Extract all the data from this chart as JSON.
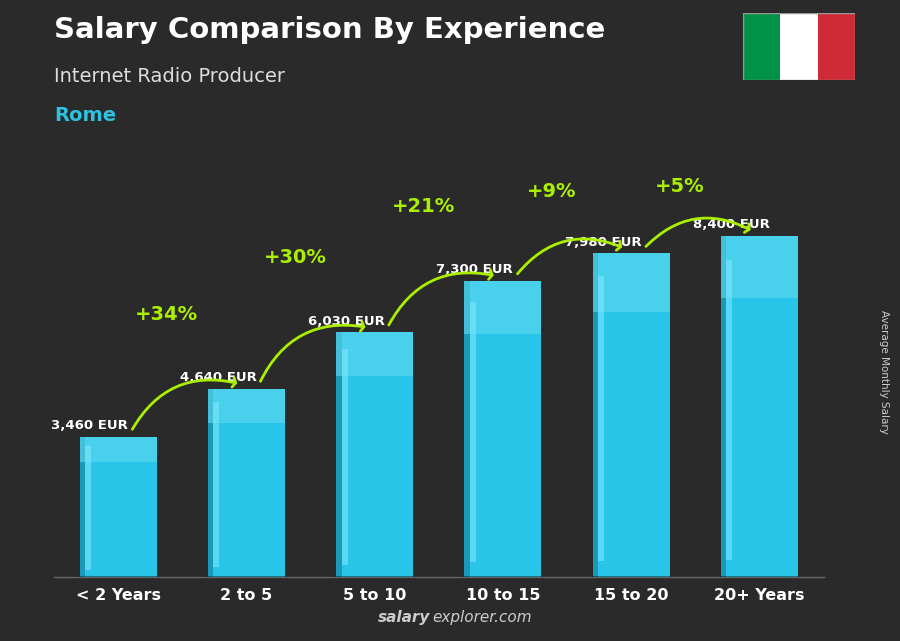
{
  "title": "Salary Comparison By Experience",
  "subtitle": "Internet Radio Producer",
  "city": "Rome",
  "watermark_bold": "salary",
  "watermark_normal": "explorer.com",
  "right_label": "Average Monthly Salary",
  "categories": [
    "< 2 Years",
    "2 to 5",
    "5 to 10",
    "10 to 15",
    "15 to 20",
    "20+ Years"
  ],
  "values": [
    3460,
    4640,
    6030,
    7300,
    7980,
    8400
  ],
  "labels": [
    "3,460 EUR",
    "4,640 EUR",
    "6,030 EUR",
    "7,300 EUR",
    "7,980 EUR",
    "8,400 EUR"
  ],
  "pct_labels": [
    "+34%",
    "+30%",
    "+21%",
    "+9%",
    "+5%"
  ],
  "bar_color_face": "#29c5e8",
  "bar_color_left": "#1a9ab8",
  "bar_color_top": "#60d8f0",
  "bar_highlight": "#80e8ff",
  "bg_color": "#2a2a2a",
  "title_color": "#ffffff",
  "subtitle_color": "#dddddd",
  "city_color": "#30c0e0",
  "label_color": "#ffffff",
  "pct_color": "#aaee00",
  "arrow_color": "#aaee00",
  "watermark_color": "#cccccc",
  "cat_color": "#ffffff",
  "ylim_max": 9800,
  "fig_width": 9.0,
  "fig_height": 6.41
}
